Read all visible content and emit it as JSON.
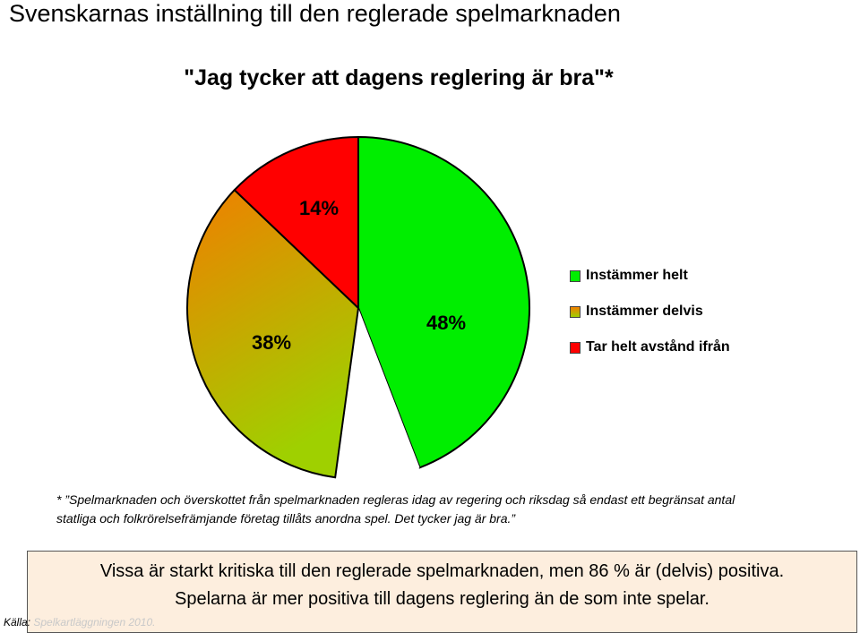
{
  "page": {
    "title": "Svenskarnas inställning till den reglerade spelmarknaden"
  },
  "chart_data": {
    "type": "pie",
    "title": "\"Jag tycker att dagens reglering är bra\"*",
    "slices": [
      {
        "name": "Instämmer helt",
        "value": 48,
        "label": "48%",
        "color": "#00ee00"
      },
      {
        "name": "",
        "value": 0,
        "label": "",
        "color": "#ffffff"
      },
      {
        "name": "Instämmer delvis",
        "value": 38,
        "label": "38%",
        "color": "#f07f00",
        "color2": "#9fd000"
      },
      {
        "name": "Tar helt avstånd ifrån",
        "value": 14,
        "label": "14%",
        "color": "#ff0000"
      }
    ],
    "legend": [
      {
        "label": "Instämmer helt",
        "color": "#00ee00"
      },
      {
        "label": "Instämmer delvis",
        "color": "#e08a1e"
      },
      {
        "label": "Tar helt avstånd ifrån",
        "color": "#ff0000"
      }
    ],
    "legend_position": "right"
  },
  "footnote": {
    "line1": "* ”Spelmarknaden och överskottet från spelmarknaden regleras idag av regering och riksdag så endast ett begränsat antal",
    "line2": "statliga och folkrörelsefrämjande företag tillåts anordna spel. Det tycker jag är bra.”"
  },
  "summary": {
    "line1": "Vissa är starkt kritiska till den reglerade spelmarknaden, men 86 % är (delvis) positiva.",
    "line2": "Spelarna är mer positiva till dagens reglering än de som inte spelar."
  },
  "source": {
    "label": "Källa:",
    "value": "Spelkartläggningen 2010."
  }
}
